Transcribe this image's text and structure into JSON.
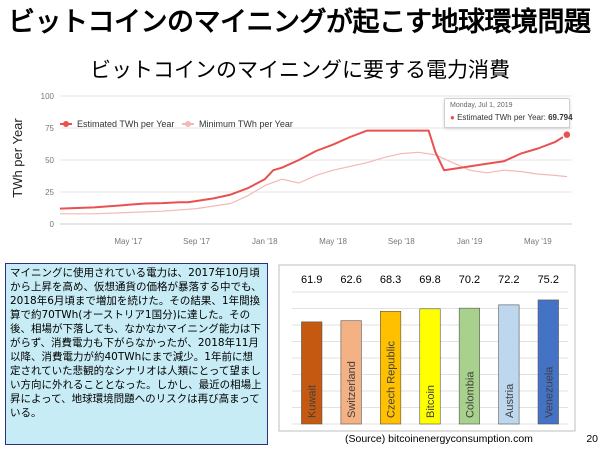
{
  "slide": {
    "title": "ビットコインのマイニングが起こす地球環境問題",
    "subtitle": "ビットコインのマイニングに要する電力消費",
    "text_box": "マイニングに使用されている電力は、2017年10月頃から上昇を高め、仮想通貨の価格が暴落する中でも、2018年6月頃まで増加を続けた。その結果、1年間換算で約70TWh(オーストリア1国分)に達した。その後、相場が下落しても、なかなかマイニング能力は下がらず、消費電力も下がらなかったが、2018年11月以降、消費電力が約40TWhにまで減少。1年前に想定されていた悲観的なシナリオは人類にとって望ましい方向に外れることとなった。しかし、最近の相場上昇によって、地球環境問題へのリスクは再び高まっている。",
    "source": "(Source) bitcoinenergyconsumption.com",
    "page_number": "20"
  },
  "tooltip": {
    "date": "Monday, Jul 1, 2019",
    "label": "Estimated TWh per Year:",
    "value": "69.794"
  },
  "chart_data": [
    {
      "type": "line",
      "ylabel": "TWh per Year",
      "y_ticks": [
        "100",
        "75",
        "50",
        "25",
        "0"
      ],
      "ylim": [
        0,
        100
      ],
      "x_ticks": [
        "May '17",
        "Sep '17",
        "Jan '18",
        "May '18",
        "Sep '18",
        "Jan '19",
        "May '19"
      ],
      "x_tick_months": [
        4,
        8,
        12,
        16,
        20,
        24,
        28
      ],
      "xlim_months": [
        0,
        30
      ],
      "legend_position": "top-left",
      "series": [
        {
          "name": "Estimated TWh per Year",
          "color": "#e8514f",
          "x_months": [
            0,
            1,
            2,
            3,
            4,
            5,
            6,
            7,
            7.5,
            8,
            9,
            10,
            11,
            12,
            12.5,
            13,
            14,
            15,
            16,
            17,
            18,
            19,
            20,
            20.5,
            21,
            21.3,
            21.6,
            22,
            22.5,
            23,
            24,
            25,
            26,
            27,
            28,
            29,
            29.7
          ],
          "values": [
            12,
            12.5,
            13,
            14,
            15,
            16,
            16.3,
            17,
            17,
            18,
            20,
            23,
            28,
            35,
            42,
            44,
            50,
            57,
            62,
            68,
            73,
            73,
            73,
            73,
            73,
            73,
            73,
            56,
            42,
            43,
            45,
            47,
            49,
            55,
            59,
            64,
            69.794
          ]
        },
        {
          "name": "Minimum TWh per Year",
          "color": "#f4b8b6",
          "x_months": [
            0,
            2,
            4,
            6,
            8,
            10,
            11,
            12,
            13,
            14,
            15,
            16,
            17,
            18,
            19,
            20,
            21,
            22,
            23,
            24,
            25,
            26,
            27,
            28,
            29,
            29.7
          ],
          "values": [
            8,
            8,
            9,
            10,
            12,
            16,
            22,
            30,
            35,
            32,
            38,
            42,
            45,
            48,
            52,
            55,
            56,
            54,
            48,
            42,
            40,
            42,
            41,
            39,
            38,
            37
          ]
        }
      ],
      "highlight": {
        "x_month": 29.7,
        "value": 69.794
      }
    },
    {
      "type": "bar",
      "categories": [
        "Kuwait",
        "Switzerland",
        "Czech Republic",
        "Bitcoin",
        "Colombia",
        "Austria",
        "Venezuela"
      ],
      "values": [
        61.9,
        62.6,
        68.3,
        69.8,
        70.2,
        72.2,
        75.2
      ],
      "value_labels": [
        "61.9",
        "62.6",
        "68.3",
        "69.8",
        "70.2",
        "72.2",
        "75.2"
      ],
      "colors": [
        "#c65911",
        "#f4b183",
        "#ffc000",
        "#ffff00",
        "#a9d18e",
        "#bdd7ee",
        "#4472c4"
      ],
      "ylim": [
        0,
        80
      ],
      "grid": true
    }
  ]
}
